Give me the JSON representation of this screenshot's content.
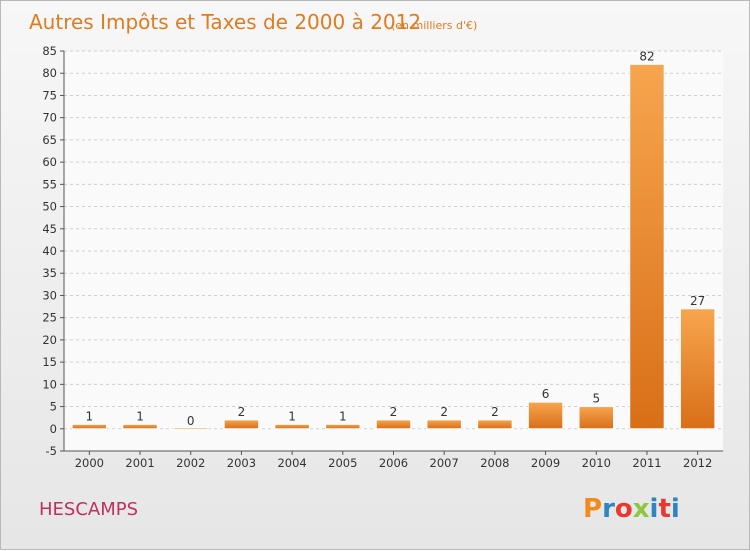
{
  "chart_data": {
    "type": "bar",
    "title": "Autres Impôts et Taxes de 2000 à 2012",
    "subtitle": "(en milliers d'€)",
    "categories": [
      "2000",
      "2001",
      "2002",
      "2003",
      "2004",
      "2005",
      "2006",
      "2007",
      "2008",
      "2009",
      "2010",
      "2011",
      "2012"
    ],
    "values": [
      1,
      1,
      0,
      2,
      1,
      1,
      2,
      2,
      2,
      6,
      5,
      82,
      27
    ],
    "data_labels": [
      "1",
      "1",
      "0",
      "2",
      "1",
      "1",
      "2",
      "2",
      "2",
      "6",
      "5",
      "82",
      "27"
    ],
    "ylim": [
      -5,
      85
    ],
    "yticks": [
      "-5",
      "0",
      "5",
      "10",
      "15",
      "20",
      "25",
      "30",
      "35",
      "40",
      "45",
      "50",
      "55",
      "60",
      "65",
      "70",
      "75",
      "80",
      "85"
    ],
    "grid": true,
    "bar_color": "#f0892d"
  },
  "footer": {
    "town": "HESCAMPS",
    "logo": "Proxiti",
    "logo_letters": [
      "P",
      "r",
      "o",
      "x",
      "i",
      "t",
      "i"
    ],
    "logo_colors": [
      "#f28b1e",
      "#2e86c1",
      "#e8382f",
      "#8dc63f",
      "#2e86c1",
      "#e8382f",
      "#2e86c1"
    ]
  }
}
